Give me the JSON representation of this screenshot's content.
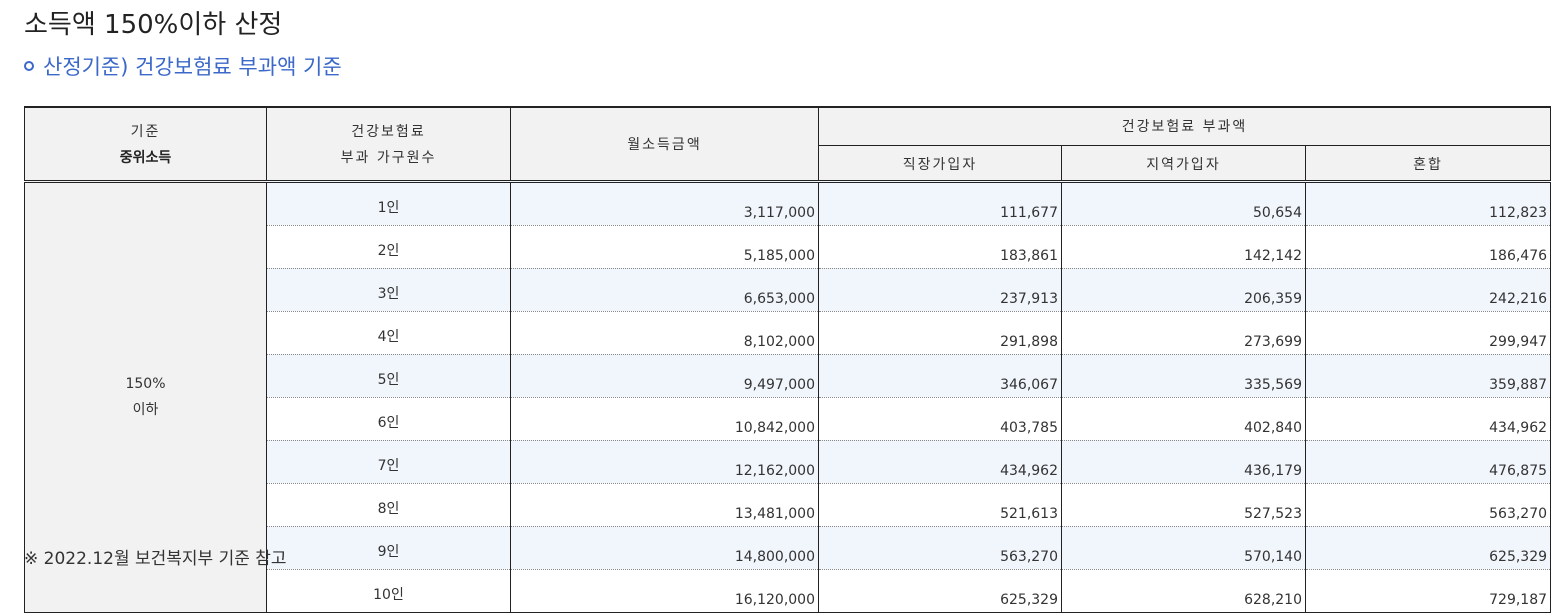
{
  "page_title": "소득액 150%이하 산정",
  "subtitle": "산정기준) 건강보험료 부과액 기준",
  "table": {
    "headers": {
      "basis_line1": "기준",
      "basis_line2": "중위소득",
      "household_line1": "건강보험료",
      "household_line2": "부과 가구원수",
      "income": "월소득금액",
      "premium_group": "건강보험료 부과액",
      "employee": "직장가입자",
      "regional": "지역가입자",
      "mixed": "혼합"
    },
    "basis_value_line1": "150%",
    "basis_value_line2": "이하",
    "rows": [
      {
        "count": "1인",
        "income": "3,117,000",
        "employee": "111,677",
        "regional": "50,654",
        "mixed": "112,823"
      },
      {
        "count": "2인",
        "income": "5,185,000",
        "employee": "183,861",
        "regional": "142,142",
        "mixed": "186,476"
      },
      {
        "count": "3인",
        "income": "6,653,000",
        "employee": "237,913",
        "regional": "206,359",
        "mixed": "242,216"
      },
      {
        "count": "4인",
        "income": "8,102,000",
        "employee": "291,898",
        "regional": "273,699",
        "mixed": "299,947"
      },
      {
        "count": "5인",
        "income": "9,497,000",
        "employee": "346,067",
        "regional": "335,569",
        "mixed": "359,887"
      },
      {
        "count": "6인",
        "income": "10,842,000",
        "employee": "403,785",
        "regional": "402,840",
        "mixed": "434,962"
      },
      {
        "count": "7인",
        "income": "12,162,000",
        "employee": "434,962",
        "regional": "436,179",
        "mixed": "476,875"
      },
      {
        "count": "8인",
        "income": "13,481,000",
        "employee": "521,613",
        "regional": "527,523",
        "mixed": "563,270"
      },
      {
        "count": "9인",
        "income": "14,800,000",
        "employee": "563,270",
        "regional": "570,140",
        "mixed": "625,329"
      },
      {
        "count": "10인",
        "income": "16,120,000",
        "employee": "625,329",
        "regional": "628,210",
        "mixed": "729,187"
      }
    ]
  },
  "footnote": "※ 2022.12월 보건복지부 기준 참고",
  "colors": {
    "accent": "#3b68c9",
    "header_bg": "#f2f2f2",
    "row_shade": "#f1f5fc"
  }
}
